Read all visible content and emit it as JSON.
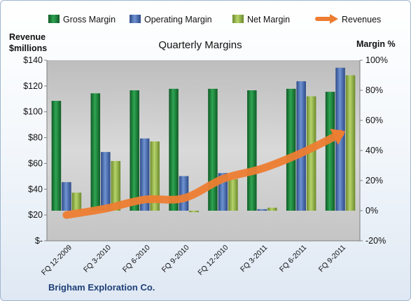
{
  "legend": {
    "gross": "Gross Margin",
    "operating": "Operating Margin",
    "net": "Net Margin",
    "revenues": "Revenues"
  },
  "left_axis_title_line1": "Revenue",
  "left_axis_title_line2": "$millions",
  "right_axis_title": "Margin %",
  "company": "Brigham Exploration Co.",
  "colors": {
    "gross": "#1f8a3c",
    "operating": "#4f74b8",
    "net": "#98bb4f",
    "revenues": "#ed7d31",
    "plot_bg": "#c8c8c8"
  },
  "chart_data": {
    "type": "bar",
    "title": "Quarterly Margins",
    "categories": [
      "FQ 12-2009",
      "FQ 3-2010",
      "FQ 6-2010",
      "FQ 9-2010",
      "FQ 12-2010",
      "FQ 3-2011",
      "FQ 6-2011",
      "FQ 9-2011"
    ],
    "series": [
      {
        "name": "Gross Margin",
        "axis": "right",
        "values": [
          73,
          78,
          80,
          81,
          81,
          80,
          81,
          79
        ]
      },
      {
        "name": "Operating Margin",
        "axis": "right",
        "values": [
          19,
          39,
          48,
          23,
          25,
          1,
          86,
          95
        ]
      },
      {
        "name": "Net Margin",
        "axis": "right",
        "values": [
          12,
          33,
          46,
          -1,
          21,
          2,
          76,
          90
        ]
      },
      {
        "name": "Revenues",
        "type": "line",
        "axis": "left",
        "values": [
          20,
          25,
          32,
          33,
          48,
          56,
          68,
          83
        ]
      }
    ],
    "y_left": {
      "label": "Revenue $millions",
      "ylim": [
        0,
        140
      ],
      "ticks": [
        "$-",
        "$20",
        "$40",
        "$60",
        "$80",
        "$100",
        "$120",
        "$140"
      ]
    },
    "y_right": {
      "label": "Margin %",
      "ylim": [
        -20,
        100
      ],
      "ticks": [
        "-20%",
        "0%",
        "20%",
        "40%",
        "60%",
        "80%",
        "100%"
      ]
    },
    "legend_position": "top",
    "grid": false
  }
}
